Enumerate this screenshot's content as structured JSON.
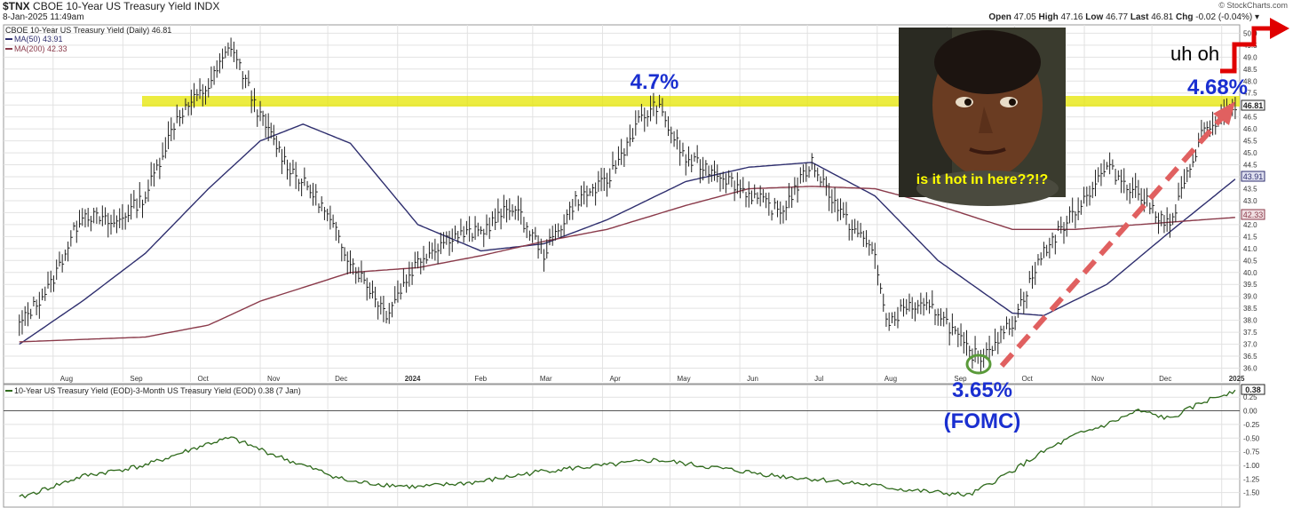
{
  "header": {
    "symbol": "$TNX",
    "name": "CBOE 10-Year US Treasury Yield INDX",
    "datetime": "8-Jan-2025 11:49am",
    "brand": "© StockCharts.com",
    "quote": {
      "open_label": "Open",
      "open": "47.05",
      "high_label": "High",
      "high": "47.16",
      "low_label": "Low",
      "low": "46.77",
      "last_label": "Last",
      "last": "46.81",
      "chg_label": "Chg",
      "chg": "-0.02 (-0.04%)"
    }
  },
  "legend": {
    "main": "CBOE 10-Year US Treasury Yield (Daily) 46.81",
    "ma50": "MA(50) 43.91",
    "ma200": "MA(200) 42.33",
    "lower": "10-Year US Treasury Yield (EOD)-3-Month US Treasury Yield (EOD) 0.38 (7 Jan)"
  },
  "colors": {
    "price": "#222222",
    "ma50": "#2e2e6e",
    "ma200": "#8a3a4a",
    "spread": "#2f6a1c",
    "highlight_band": "#e6e600",
    "arrow": "#e06060",
    "annotation": "#1a2fd0",
    "circle": "#5a9a3a",
    "gridline": "#dddddd",
    "step_arrow": "#e00000"
  },
  "annotations": {
    "peak_label": "4.7%",
    "current_label": "4.68%",
    "low_label": "3.65%",
    "low_sub": "(FOMC)",
    "uh_oh": "uh oh",
    "meme_caption": "is it hot in here??!?"
  },
  "right_badges": {
    "last": "46.81",
    "ma50": "43.91",
    "ma200": "42.33",
    "spread": "0.38"
  },
  "chart_data": [
    {
      "type": "line",
      "title": "CBOE 10-Year US Treasury Yield (Daily)",
      "x_tick_labels": [
        "Aug",
        "Sep",
        "Oct",
        "Nov",
        "Dec",
        "2024",
        "Feb",
        "Mar",
        "Apr",
        "May",
        "Jun",
        "Jul",
        "Aug",
        "Sep",
        "Oct",
        "Nov",
        "Dec",
        "2025"
      ],
      "y_tick_labels": [
        "36.0",
        "36.5",
        "37.0",
        "37.5",
        "38.0",
        "38.5",
        "39.0",
        "39.5",
        "40.0",
        "40.5",
        "41.0",
        "41.5",
        "42.0",
        "42.5",
        "43.0",
        "43.5",
        "44.0",
        "44.5",
        "45.0",
        "45.5",
        "46.0",
        "46.5",
        "47.0",
        "47.5",
        "48.0",
        "48.5",
        "49.0",
        "49.5",
        "50.0"
      ],
      "ylim": [
        35.5,
        50.2
      ],
      "series": [
        {
          "name": "CBOE 10-Year US Treasury Yield (Daily)",
          "x": [
            "2023-07-17",
            "2023-07-31",
            "2023-08-14",
            "2023-08-28",
            "2023-09-11",
            "2023-09-25",
            "2023-10-09",
            "2023-10-19",
            "2023-11-01",
            "2023-11-13",
            "2023-11-27",
            "2023-12-11",
            "2023-12-27",
            "2024-01-10",
            "2024-01-24",
            "2024-02-07",
            "2024-02-21",
            "2024-03-06",
            "2024-03-20",
            "2024-04-03",
            "2024-04-17",
            "2024-04-25",
            "2024-05-08",
            "2024-05-22",
            "2024-06-05",
            "2024-06-19",
            "2024-07-03",
            "2024-07-17",
            "2024-07-31",
            "2024-08-05",
            "2024-08-14",
            "2024-08-28",
            "2024-09-11",
            "2024-09-16",
            "2024-09-30",
            "2024-10-14",
            "2024-10-28",
            "2024-11-11",
            "2024-11-25",
            "2024-12-09",
            "2024-12-23",
            "2025-01-07"
          ],
          "y": [
            37.8,
            39.5,
            42.5,
            42.0,
            43.2,
            46.5,
            47.8,
            49.5,
            46.5,
            44.5,
            43.0,
            40.5,
            38.3,
            40.5,
            41.5,
            41.7,
            42.8,
            40.8,
            43.0,
            43.8,
            46.3,
            47.0,
            44.7,
            44.2,
            43.3,
            42.5,
            44.6,
            42.3,
            40.8,
            37.8,
            38.6,
            38.4,
            36.6,
            36.5,
            37.9,
            40.9,
            42.6,
            44.4,
            43.3,
            41.9,
            45.8,
            46.8
          ]
        },
        {
          "name": "MA(50)",
          "x": [
            "2023-07-17",
            "2023-08-14",
            "2023-09-11",
            "2023-10-09",
            "2023-11-01",
            "2023-11-20",
            "2023-12-11",
            "2024-01-10",
            "2024-02-07",
            "2024-03-06",
            "2024-04-03",
            "2024-05-08",
            "2024-06-05",
            "2024-07-03",
            "2024-07-31",
            "2024-08-28",
            "2024-09-30",
            "2024-10-14",
            "2024-11-11",
            "2024-12-09",
            "2025-01-07"
          ],
          "y": [
            37.0,
            38.8,
            40.8,
            43.5,
            45.5,
            46.2,
            45.4,
            42.0,
            40.9,
            41.2,
            42.2,
            43.8,
            44.4,
            44.6,
            43.2,
            40.5,
            38.3,
            38.2,
            39.5,
            41.7,
            43.9
          ]
        },
        {
          "name": "MA(200)",
          "x": [
            "2023-07-17",
            "2023-08-14",
            "2023-09-11",
            "2023-10-09",
            "2023-11-01",
            "2023-12-11",
            "2024-01-10",
            "2024-02-07",
            "2024-03-06",
            "2024-04-03",
            "2024-05-08",
            "2024-06-05",
            "2024-07-03",
            "2024-07-31",
            "2024-08-28",
            "2024-09-30",
            "2024-10-28",
            "2024-11-25",
            "2024-12-23",
            "2025-01-07"
          ],
          "y": [
            37.1,
            37.2,
            37.3,
            37.8,
            38.8,
            40.0,
            40.2,
            40.7,
            41.3,
            41.8,
            42.8,
            43.5,
            43.6,
            43.5,
            42.8,
            41.8,
            41.8,
            42.0,
            42.2,
            42.3
          ]
        }
      ],
      "annotations": [
        "4.7%",
        "4.68%",
        "3.65%",
        "(FOMC)",
        "uh oh"
      ],
      "grid": true
    },
    {
      "type": "line",
      "title": "10-Year US Treasury Yield (EOD)-3-Month US Treasury Yield (EOD)",
      "y_tick_labels": [
        "0.25",
        "0.00",
        "-0.25",
        "-0.50",
        "-0.75",
        "-1.00",
        "-1.25",
        "-1.50"
      ],
      "ylim": [
        -1.75,
        0.4
      ],
      "series": [
        {
          "name": "10-Year US Treasury Yield (EOD)-3-Month US Treasury Yield (EOD)",
          "x": [
            "2023-07-17",
            "2023-08-14",
            "2023-09-11",
            "2023-10-09",
            "2023-10-19",
            "2023-11-13",
            "2023-12-11",
            "2024-01-10",
            "2024-02-07",
            "2024-03-06",
            "2024-04-03",
            "2024-04-25",
            "2024-05-22",
            "2024-06-19",
            "2024-07-17",
            "2024-08-14",
            "2024-09-11",
            "2024-09-30",
            "2024-10-14",
            "2024-10-28",
            "2024-11-11",
            "2024-11-25",
            "2024-12-09",
            "2024-12-23",
            "2025-01-07"
          ],
          "y": [
            -1.6,
            -1.2,
            -1.0,
            -0.6,
            -0.5,
            -0.9,
            -1.3,
            -1.4,
            -1.3,
            -1.1,
            -1.0,
            -0.9,
            -1.05,
            -1.2,
            -1.3,
            -1.45,
            -1.55,
            -1.1,
            -0.75,
            -0.45,
            -0.25,
            -0.0,
            -0.15,
            0.15,
            0.38
          ]
        }
      ],
      "grid": true
    }
  ]
}
